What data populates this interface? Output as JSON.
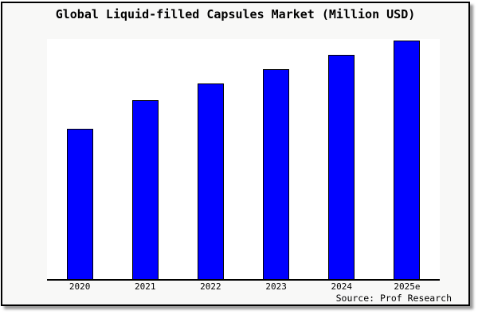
{
  "chart": {
    "title": "Global Liquid-filled Capsules Market (Million USD)",
    "source_note": "Source: Prof Research",
    "colors": {
      "bar_fill": "#0000ff",
      "bar_edge": "#000000",
      "plot_background": "#ffffff",
      "frame_background": "#f8f8f7",
      "frame_border": "#000000",
      "text": "#000000"
    }
  },
  "chart_data": {
    "type": "bar",
    "title": "Global Liquid-filled Capsules Market (Million USD)",
    "categories": [
      "2020",
      "2021",
      "2022",
      "2023",
      "2024",
      "2025e"
    ],
    "values": [
      63,
      75,
      82,
      88,
      94,
      100
    ],
    "value_note": "No y-axis ticks shown in image; values are estimated relative heights with 2025e = 100",
    "xlabel": "",
    "ylabel": "",
    "ylim": [
      0,
      100.5
    ],
    "grid": false,
    "legend": false,
    "bar_color": "#0000ff",
    "bar_edge_color": "#000000",
    "annotations": [
      "Source: Prof Research"
    ]
  }
}
